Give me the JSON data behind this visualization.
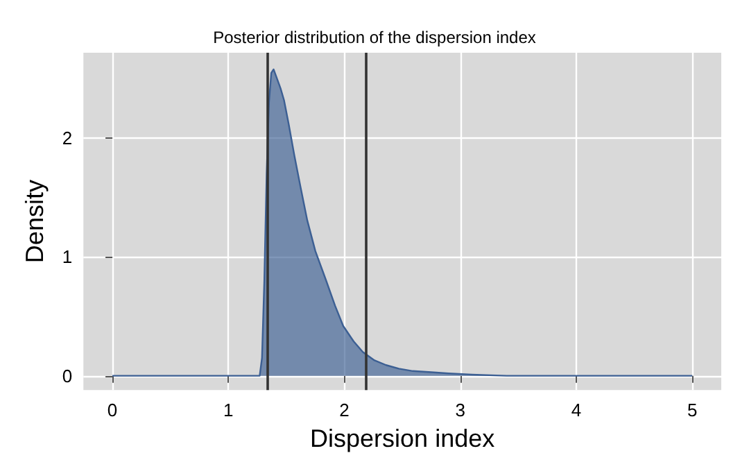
{
  "chart_data": {
    "type": "area",
    "title": "Posterior distribution of the dispersion index",
    "xlabel": "Dispersion index",
    "ylabel": "Density",
    "x": [
      0,
      0.5,
      1,
      1.2,
      1.27,
      1.29,
      1.31,
      1.33,
      1.35,
      1.37,
      1.39,
      1.42,
      1.45,
      1.48,
      1.52,
      1.57,
      1.62,
      1.68,
      1.75,
      1.84,
      1.92,
      1.99,
      2.08,
      2.16,
      2.26,
      2.36,
      2.47,
      2.59,
      2.75,
      2.9,
      3.1,
      3.4,
      4,
      4.5,
      5
    ],
    "series": [
      {
        "color": "#3c5f93",
        "values": [
          0,
          0,
          0,
          0,
          0,
          0.15,
          0.8,
          1.7,
          2.3,
          2.55,
          2.58,
          2.5,
          2.42,
          2.32,
          2.12,
          1.85,
          1.6,
          1.31,
          1.05,
          0.81,
          0.59,
          0.42,
          0.29,
          0.2,
          0.13,
          0.09,
          0.06,
          0.04,
          0.03,
          0.02,
          0.01,
          0,
          0,
          0,
          0
        ]
      }
    ],
    "xlim": [
      -0.25,
      5.25
    ],
    "ylim": [
      -0.12,
      2.72
    ],
    "xticks": [
      0,
      1,
      2,
      3,
      4,
      5
    ],
    "yticks": [
      0,
      1,
      2
    ],
    "grid": true,
    "ref_lines": [
      {
        "axis": "x",
        "value": 1.34,
        "color": "#333333"
      },
      {
        "axis": "x",
        "value": 2.18,
        "color": "#333333"
      }
    ]
  }
}
